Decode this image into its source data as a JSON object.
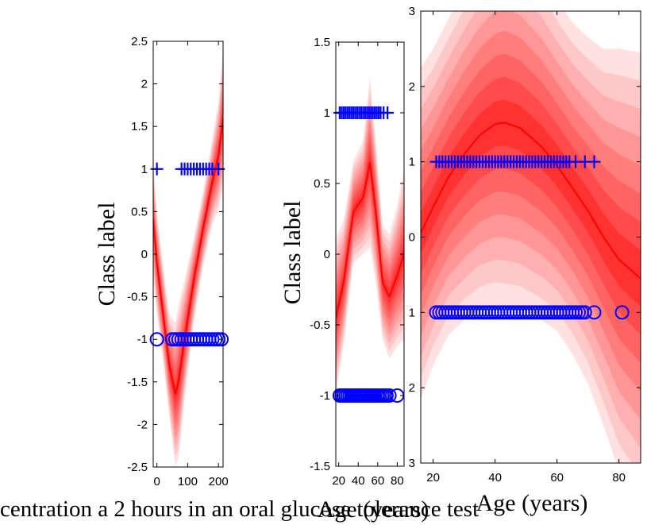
{
  "chart_data": [
    {
      "type": "area",
      "panel": "left",
      "xlabel": "centration a 2 hours in an oral glucose tolerance test",
      "ylabel": "Class label",
      "xlim": [
        -12,
        215
      ],
      "ylim": [
        -2.5,
        2.5
      ],
      "xticks": [
        {
          "v": 0,
          "label": "0"
        },
        {
          "v": 100,
          "label": "100"
        },
        {
          "v": 200,
          "label": "200"
        }
      ],
      "yticks": [
        {
          "v": 2.5,
          "label": "2.5"
        },
        {
          "v": 2,
          "label": "2"
        },
        {
          "v": 1.5,
          "label": "1.5"
        },
        {
          "v": 1,
          "label": "1"
        },
        {
          "v": 0.5,
          "label": "0.5"
        },
        {
          "v": 0,
          "label": "0"
        },
        {
          "v": -0.5,
          "label": "-0.5"
        },
        {
          "v": -1,
          "label": "-1"
        },
        {
          "v": -1.5,
          "label": "-1.5"
        },
        {
          "v": -2,
          "label": "-2"
        },
        {
          "v": -2.5,
          "label": "-2.5"
        }
      ],
      "mean": {
        "x": [
          -12,
          0,
          20,
          40,
          60,
          70,
          90,
          120,
          150,
          180,
          200,
          215
        ],
        "y": [
          0.4,
          -0.1,
          -0.7,
          -1.3,
          -1.65,
          -1.5,
          -1.0,
          -0.3,
          0.3,
          0.85,
          1.15,
          1.6
        ]
      },
      "sd": {
        "x": [
          -12,
          0,
          20,
          40,
          60,
          70,
          90,
          120,
          150,
          180,
          200,
          215
        ],
        "y": [
          0.35,
          0.3,
          0.28,
          0.3,
          0.42,
          0.45,
          0.35,
          0.25,
          0.22,
          0.25,
          0.32,
          0.4
        ]
      },
      "class_pos": {
        "x": [
          0,
          80,
          90,
          100,
          110,
          120,
          130,
          140,
          150,
          160,
          170,
          180,
          200
        ],
        "y": 1
      },
      "class_neg": {
        "x": [
          0,
          50,
          60,
          70,
          80,
          90,
          100,
          110,
          120,
          130,
          140,
          150,
          160,
          170,
          180,
          190,
          200,
          210
        ],
        "y": -1
      }
    },
    {
      "type": "area",
      "panel": "middle",
      "xlabel": "Age (years)",
      "ylabel": "Class label",
      "xlim": [
        17,
        87
      ],
      "ylim": [
        -1.5,
        1.5
      ],
      "xticks": [
        {
          "v": 20,
          "label": "20"
        },
        {
          "v": 40,
          "label": "40"
        },
        {
          "v": 60,
          "label": "60"
        },
        {
          "v": 80,
          "label": "80"
        }
      ],
      "yticks": [
        {
          "v": 1.5,
          "label": "1.5"
        },
        {
          "v": 1,
          "label": "1"
        },
        {
          "v": 0.5,
          "label": "0.5"
        },
        {
          "v": 0,
          "label": "0"
        },
        {
          "v": -0.5,
          "label": "-0.5"
        },
        {
          "v": -1,
          "label": "-1"
        },
        {
          "v": -1.5,
          "label": "-1.5"
        }
      ],
      "mean": {
        "x": [
          17,
          25,
          35,
          45,
          52,
          58,
          65,
          72,
          80,
          87
        ],
        "y": [
          -0.45,
          -0.2,
          0.3,
          0.4,
          0.65,
          0.3,
          -0.2,
          -0.3,
          -0.15,
          0.0
        ]
      },
      "sd": {
        "x": [
          17,
          25,
          35,
          45,
          52,
          58,
          65,
          72,
          80,
          87
        ],
        "y": [
          0.28,
          0.22,
          0.18,
          0.2,
          0.3,
          0.25,
          0.2,
          0.22,
          0.25,
          0.3
        ]
      },
      "class_pos": {
        "x": [
          21,
          23,
          25,
          27,
          29,
          31,
          33,
          35,
          37,
          39,
          41,
          43,
          45,
          47,
          49,
          51,
          53,
          55,
          57,
          59,
          61,
          63,
          66,
          70
        ],
        "y": 1
      },
      "class_neg": {
        "x": [
          21,
          23,
          25,
          27,
          29,
          31,
          33,
          35,
          37,
          39,
          41,
          43,
          45,
          47,
          49,
          51,
          53,
          55,
          57,
          59,
          61,
          63,
          65,
          67,
          69,
          72,
          80
        ],
        "y": -1
      }
    },
    {
      "type": "area",
      "panel": "right",
      "xlabel": "Age (years)",
      "ylabel": "",
      "xlim": [
        16,
        87
      ],
      "ylim": [
        -3,
        3
      ],
      "xticks": [
        {
          "v": 20,
          "label": "20"
        },
        {
          "v": 40,
          "label": "40"
        },
        {
          "v": 60,
          "label": "60"
        },
        {
          "v": 80,
          "label": "80"
        }
      ],
      "yticks": [
        {
          "v": 3,
          "label": "3"
        },
        {
          "v": 2,
          "label": "2"
        },
        {
          "v": 1,
          "label": "1"
        },
        {
          "v": 0,
          "label": "0"
        },
        {
          "v": -1,
          "label": "1"
        },
        {
          "v": -2,
          "label": "2"
        },
        {
          "v": -3,
          "label": "3"
        }
      ],
      "mean": {
        "x": [
          16,
          20,
          25,
          30,
          35,
          40,
          43,
          48,
          55,
          60,
          65,
          70,
          75,
          80,
          87
        ],
        "y": [
          0.05,
          0.4,
          0.8,
          1.1,
          1.35,
          1.5,
          1.52,
          1.45,
          1.2,
          0.95,
          0.65,
          0.35,
          0.0,
          -0.3,
          -0.55
        ]
      },
      "sd": {
        "x": [
          16,
          20,
          25,
          30,
          35,
          40,
          43,
          48,
          55,
          60,
          65,
          70,
          75,
          80,
          87
        ],
        "y": [
          1.1,
          1.05,
          1.05,
          1.1,
          1.15,
          1.2,
          1.22,
          1.2,
          1.15,
          1.1,
          1.1,
          1.15,
          1.25,
          1.4,
          1.5
        ]
      },
      "class_pos": {
        "x": [
          21,
          22,
          23,
          24,
          25,
          26,
          27,
          28,
          29,
          30,
          31,
          32,
          33,
          34,
          35,
          36,
          37,
          38,
          39,
          40,
          41,
          42,
          43,
          44,
          45,
          46,
          47,
          48,
          49,
          50,
          51,
          52,
          53,
          54,
          55,
          56,
          57,
          58,
          59,
          60,
          61,
          62,
          63,
          64,
          66,
          69,
          72
        ],
        "y": 1
      },
      "class_neg": {
        "x": [
          21,
          22,
          23,
          24,
          25,
          26,
          27,
          28,
          29,
          30,
          31,
          32,
          33,
          34,
          35,
          36,
          37,
          38,
          39,
          40,
          41,
          42,
          43,
          44,
          45,
          46,
          47,
          48,
          49,
          50,
          51,
          52,
          53,
          54,
          55,
          56,
          57,
          58,
          59,
          60,
          61,
          62,
          63,
          64,
          65,
          66,
          67,
          68,
          69,
          72,
          81
        ],
        "y": -1
      }
    }
  ],
  "colors": {
    "mean": "#ff0000",
    "bands": [
      "#ffe1e1",
      "#ffc8c8",
      "#ffafaf",
      "#ff9696",
      "#ff7d7d",
      "#ff6464",
      "#ff4b4b",
      "#ff3232"
    ],
    "markers": "#0000ff"
  }
}
